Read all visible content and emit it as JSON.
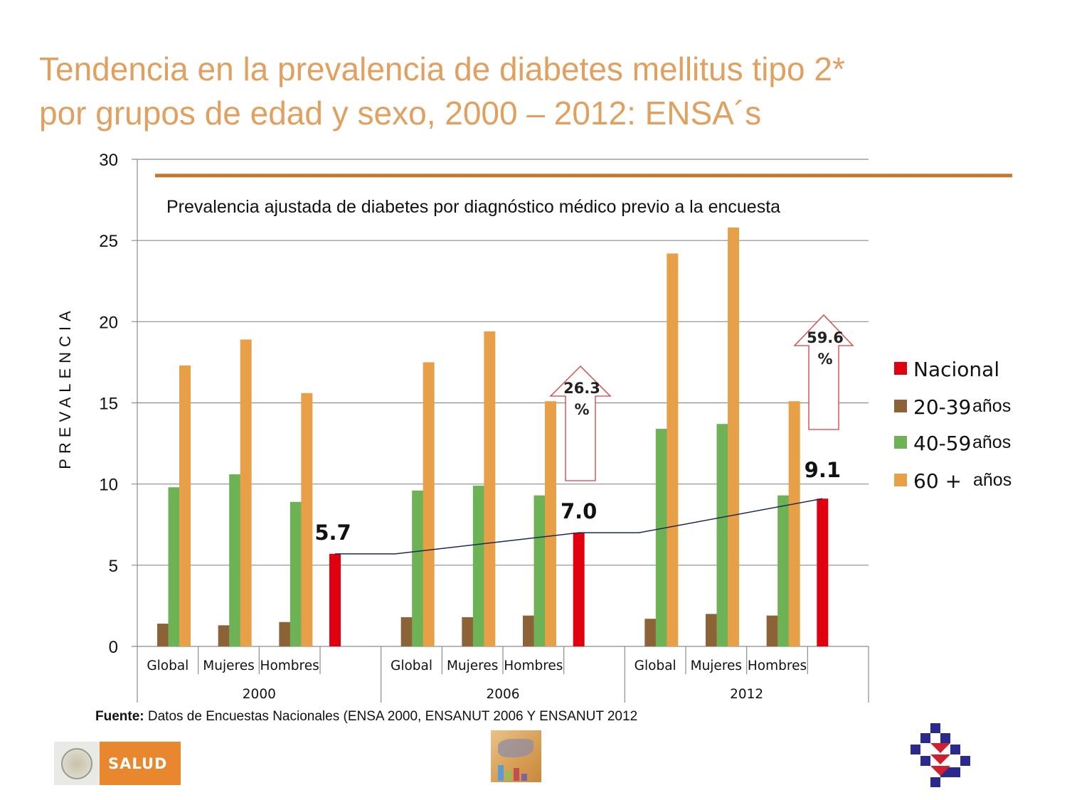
{
  "title": {
    "line1": "Tendencia en la prevalencia de diabetes mellitus tipo 2*",
    "line2": "por grupos de edad y sexo, 2000 – 2012: ENSA´s"
  },
  "source": {
    "label": "Fuente:",
    "text": " Datos de Encuestas Nacionales (ENSA 2000, ENSANUT 2006 Y ENSANUT 2012"
  },
  "logos": {
    "salud_text": "SALUD"
  },
  "colors": {
    "title": "#E0A060",
    "nacional": "#E00010",
    "age_20_39": "#8B6337",
    "age_40_59": "#6DB356",
    "age_60_plus": "#E8A048",
    "reference_line": "#C8762E",
    "trend_line": "#1F2A4F",
    "arrow": "#D04040"
  },
  "chart_data": {
    "type": "bar",
    "subtitle": "Prevalencia ajustada de diabetes por diagnóstico médico previo a la encuesta",
    "ylabel": "PREVALENCIA",
    "ylim": [
      0,
      30
    ],
    "yticks": [
      0,
      5,
      10,
      15,
      20,
      25,
      30
    ],
    "grid": true,
    "years": [
      "2000",
      "2006",
      "2012"
    ],
    "categories_per_year": [
      "Global",
      "Mujeres",
      "Hombres",
      ""
    ],
    "series": [
      {
        "name": "20-39 años",
        "legend_value": "20-39",
        "legend_suffix": "años",
        "values": [
          [
            1.4,
            1.3,
            1.5
          ],
          [
            1.8,
            1.8,
            1.9
          ],
          [
            1.7,
            2.0,
            1.9
          ]
        ]
      },
      {
        "name": "40-59 años",
        "legend_value": "40-59",
        "legend_suffix": "años",
        "values": [
          [
            9.8,
            10.6,
            8.9
          ],
          [
            9.6,
            9.9,
            9.3
          ],
          [
            13.4,
            13.7,
            9.3
          ]
        ]
      },
      {
        "name": "60 + años",
        "legend_value": "60 +",
        "legend_suffix": "años",
        "values": [
          [
            17.3,
            18.9,
            15.6
          ],
          [
            17.5,
            19.4,
            15.1
          ],
          [
            24.2,
            25.8,
            15.1
          ]
        ]
      }
    ],
    "nacional": {
      "name": "Nacional",
      "values": [
        5.7,
        7.0,
        9.1
      ],
      "labels": [
        "5.7",
        "7.0",
        "9.1"
      ]
    },
    "reference_line": {
      "value": 29.0
    },
    "increase_arrows": [
      {
        "line1": "26.3",
        "line2": "%",
        "year_index": 1
      },
      {
        "line1": "59.6",
        "line2": "%",
        "year_index": 2
      }
    ]
  }
}
